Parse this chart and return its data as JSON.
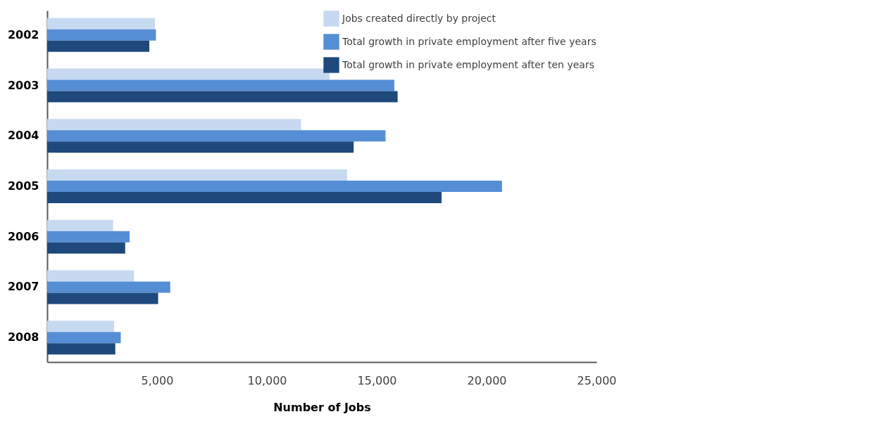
{
  "chart_data": {
    "type": "bar",
    "orientation": "horizontal",
    "xlabel": "Number of Jobs",
    "categories": [
      "2002",
      "2003",
      "2004",
      "2005",
      "2006",
      "2007",
      "2008"
    ],
    "series": [
      {
        "name": "Jobs created directly by project",
        "color": "#c6d9f1",
        "values": [
          4900,
          12850,
          11550,
          13650,
          3000,
          3950,
          3050
        ]
      },
      {
        "name": "Total growth in private employment after five years",
        "color": "#558ed5",
        "values": [
          4950,
          15800,
          15400,
          20700,
          3750,
          5600,
          3350
        ]
      },
      {
        "name": "Total growth in private employment after ten years",
        "color": "#1f497d",
        "values": [
          4650,
          15950,
          13950,
          17950,
          3550,
          5050,
          3100
        ]
      }
    ],
    "xlim": [
      0,
      25000
    ],
    "xticks": [
      {
        "value": 5000,
        "label": "5,000"
      },
      {
        "value": 10000,
        "label": "10,000"
      },
      {
        "value": 15000,
        "label": "15,000"
      },
      {
        "value": 20000,
        "label": "20,000"
      },
      {
        "value": 25000,
        "label": "25,000"
      }
    ],
    "grid": false,
    "legend": "top right"
  }
}
